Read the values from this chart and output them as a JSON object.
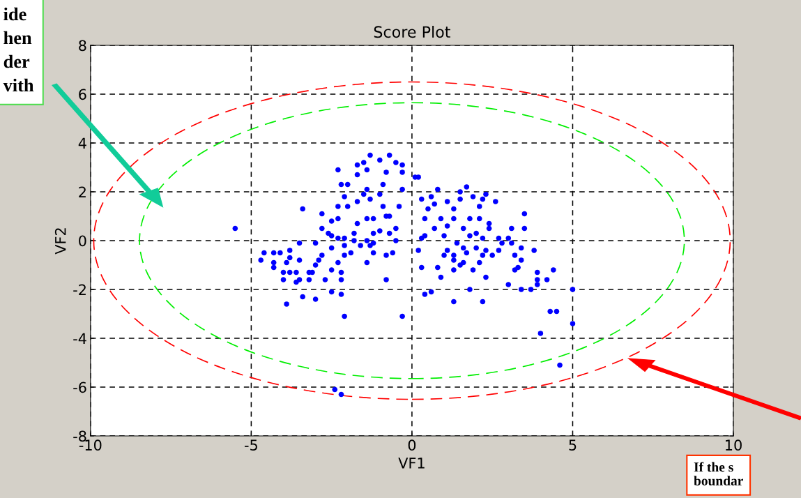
{
  "chart_data": {
    "type": "scatter",
    "title": "Score Plot",
    "xlabel": "VF1",
    "ylabel": "VF2",
    "xlim": [
      -10,
      10
    ],
    "xticks": [
      -10,
      -5,
      0,
      5,
      10
    ],
    "ylim": [
      -8,
      8
    ],
    "yticks": [
      -8,
      -6,
      -4,
      -2,
      0,
      2,
      4,
      6,
      8
    ],
    "grid": true,
    "marker": "circle",
    "legend": false,
    "annotations": [
      "ide\nhen\nder\nvith",
      "If the s\nboundar"
    ],
    "series": [
      {
        "type": "scatter",
        "color": "#0000ff",
        "x": [
          -5.5,
          -3.4,
          -2.3,
          -2.2,
          -2.0,
          -1.7,
          -1.7,
          -1.5,
          -1.3,
          -1.0,
          -0.7,
          -0.5,
          -0.3,
          -0.3,
          -0.8,
          -1.4,
          0.1,
          -1.4,
          -0.9,
          -0.3,
          -2.1,
          -1.5,
          -1.3,
          -1.0,
          -1.7,
          -2.3,
          -2.0,
          -0.9,
          -0.4,
          -2.8,
          -2.5,
          -2.3,
          -1.7,
          -1.4,
          -1.2,
          -0.8,
          -0.7,
          -0.5,
          -2.8,
          -2.6,
          -1.8,
          -1.2,
          -1.0,
          -0.7,
          -2.5,
          -2.3,
          -2.1,
          -1.8,
          -1.4,
          -1.2,
          -0.5,
          -3.0,
          -3.5,
          -2.1,
          -1.6,
          -1.3,
          -2.5,
          -1.9,
          -2.1,
          -1.2,
          -0.8,
          -0.6,
          -3.8,
          -4.6,
          -4.3,
          -4.1,
          -4.7,
          -3.8,
          -3.5,
          -2.8,
          -2.9,
          -4.3,
          -3.9,
          -4.3,
          -3.0,
          -2.3,
          -1.4,
          -4.0,
          -3.8,
          -3.6,
          -3.2,
          -3.1,
          -2.5,
          -2.2,
          -4.0,
          -3.5,
          -3.2,
          -3.6,
          -2.7,
          -2.2,
          -0.8,
          -3.4,
          -3.0,
          -2.5,
          -2.2,
          -3.9,
          -2.1,
          -0.3,
          -2.4,
          -2.2,
          0.2,
          0.8,
          1.7,
          1.5,
          2.3,
          1.9,
          0.3,
          0.6,
          1.1,
          1.5,
          2.2,
          2.6,
          0.7,
          0.5,
          1.3,
          2.1,
          0.4,
          0.9,
          1.3,
          1.8,
          2.1,
          2.4,
          3.5,
          3.1,
          3.5,
          0.7,
          1.1,
          1.6,
          2.0,
          2.4,
          0.4,
          1.0,
          1.8,
          0.3,
          2.2,
          2.7,
          3.0,
          1.4,
          2.8,
          3.1,
          0.2,
          1.1,
          1.6,
          2.0,
          2.3,
          2.7,
          3.4,
          3.8,
          1.0,
          1.3,
          1.7,
          2.2,
          2.5,
          3.2,
          3.4,
          1.3,
          1.6,
          2.1,
          1.5,
          0.3,
          0.8,
          1.3,
          1.9,
          3.3,
          4.4,
          0.9,
          2.3,
          3.2,
          3.9,
          3.9,
          4.2,
          3.0,
          3.9,
          1.8,
          3.4,
          3.7,
          5.0,
          0.4,
          0.6,
          1.3,
          2.2,
          4.3,
          4.5,
          5.0,
          4.0,
          4.6
        ],
        "values": [
          0.5,
          1.3,
          2.9,
          2.3,
          2.3,
          2.7,
          3.1,
          3.2,
          3.5,
          3.3,
          3.5,
          3.2,
          3.1,
          2.8,
          2.8,
          2.9,
          2.6,
          2.1,
          2.3,
          2.1,
          1.8,
          1.9,
          1.7,
          1.9,
          1.6,
          1.4,
          1.4,
          1.4,
          1.4,
          1.1,
          0.8,
          0.9,
          0.7,
          0.9,
          0.9,
          1.0,
          1.0,
          0.5,
          0.5,
          0.3,
          0.3,
          0.3,
          0.4,
          0.3,
          0.2,
          0.1,
          0.1,
          0.0,
          0.0,
          -0.1,
          0.0,
          -0.1,
          -0.1,
          -0.2,
          -0.2,
          -0.2,
          -0.3,
          -0.5,
          -0.6,
          -0.5,
          -0.6,
          -0.5,
          -0.4,
          -0.5,
          -0.5,
          -0.5,
          -0.8,
          -0.7,
          -0.8,
          -0.6,
          -0.8,
          -0.9,
          -0.9,
          -1.1,
          -1.0,
          -0.9,
          -0.9,
          -1.3,
          -1.3,
          -1.3,
          -1.3,
          -1.3,
          -1.2,
          -1.3,
          -1.6,
          -1.6,
          -1.6,
          -1.7,
          -1.6,
          -1.6,
          -1.6,
          -2.3,
          -2.4,
          -2.1,
          -2.2,
          -2.6,
          -3.1,
          -3.1,
          -6.1,
          -6.3,
          2.6,
          2.1,
          2.2,
          2.0,
          1.9,
          1.8,
          1.7,
          1.8,
          1.6,
          1.7,
          1.7,
          1.6,
          1.5,
          1.3,
          1.3,
          1.4,
          0.9,
          0.9,
          0.9,
          0.9,
          0.9,
          0.7,
          1.1,
          0.5,
          0.5,
          0.5,
          0.6,
          0.5,
          0.3,
          0.5,
          0.2,
          0.2,
          0.2,
          0.1,
          0.1,
          0.1,
          0.1,
          -0.1,
          -0.1,
          -0.1,
          -0.4,
          -0.4,
          -0.3,
          -0.3,
          -0.4,
          -0.4,
          -0.3,
          -0.4,
          -0.6,
          -0.6,
          -0.5,
          -0.6,
          -0.6,
          -0.6,
          -0.8,
          -0.8,
          -0.9,
          -0.9,
          -1.0,
          -1.1,
          -1.1,
          -1.2,
          -1.2,
          -1.1,
          -1.2,
          -1.5,
          -1.5,
          -1.2,
          -1.3,
          -1.6,
          -1.6,
          -1.8,
          -1.8,
          -2.0,
          -2.0,
          -2.0,
          -2.0,
          -2.2,
          -2.1,
          -2.5,
          -2.5,
          -2.9,
          -2.9,
          -3.4,
          -3.8,
          -5.1
        ]
      }
    ]
  }
}
